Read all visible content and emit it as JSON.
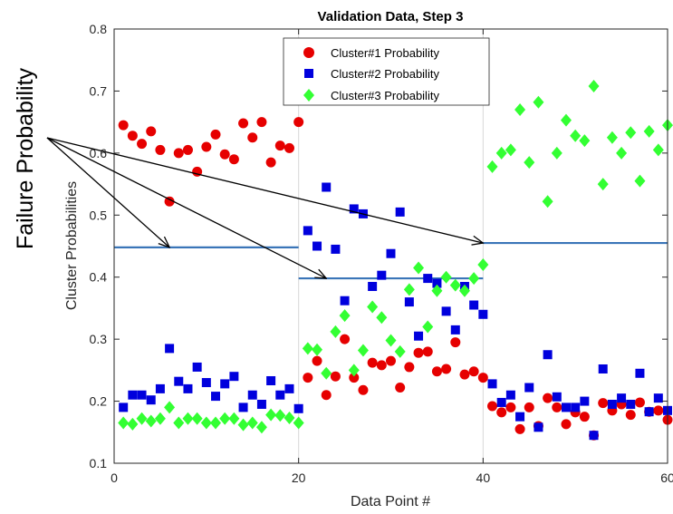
{
  "chart_data": {
    "type": "scatter",
    "title": "Validation Data, Step 3",
    "xlabel": "Data Point #",
    "ylabel": "Cluster Probabilities",
    "xlim": [
      0,
      60
    ],
    "ylim": [
      0.1,
      0.8
    ],
    "xticks": [
      "0",
      "20",
      "40",
      "60"
    ],
    "yticks": [
      "0.1",
      "0.2",
      "0.3",
      "0.4",
      "0.5",
      "0.6",
      "0.7",
      "0.8"
    ],
    "grid": "vertical lines at x=20 and x=40",
    "legend_position": "top-center",
    "annotation": "Failure Probability",
    "colors": {
      "cluster1": "#e60000",
      "cluster2": "#0000dd",
      "cluster3": "#33ff33",
      "failure_line": "#3a75b8"
    },
    "failure_probability_lines": [
      {
        "x": [
          0,
          20
        ],
        "y": 0.448
      },
      {
        "x": [
          20,
          40
        ],
        "y": 0.398
      },
      {
        "x": [
          40,
          60
        ],
        "y": 0.455
      }
    ],
    "series": [
      {
        "name": "Cluster#1 Probability",
        "marker": "circle",
        "x": [
          1,
          2,
          3,
          4,
          5,
          6,
          7,
          8,
          9,
          10,
          11,
          12,
          13,
          14,
          15,
          16,
          17,
          18,
          19,
          20,
          21,
          22,
          23,
          24,
          25,
          26,
          27,
          28,
          29,
          30,
          31,
          32,
          33,
          34,
          35,
          36,
          37,
          38,
          39,
          40,
          41,
          42,
          43,
          44,
          45,
          46,
          47,
          48,
          49,
          50,
          51,
          52,
          53,
          54,
          55,
          56,
          57,
          58,
          59,
          60
        ],
        "y": [
          0.645,
          0.628,
          0.615,
          0.635,
          0.605,
          0.522,
          0.6,
          0.605,
          0.57,
          0.61,
          0.63,
          0.598,
          0.59,
          0.648,
          0.625,
          0.65,
          0.585,
          0.612,
          0.608,
          0.65,
          0.238,
          0.265,
          0.21,
          0.24,
          0.3,
          0.238,
          0.218,
          0.262,
          0.258,
          0.265,
          0.222,
          0.255,
          0.278,
          0.28,
          0.248,
          0.252,
          0.295,
          0.243,
          0.248,
          0.238,
          0.192,
          0.182,
          0.19,
          0.155,
          0.19,
          0.16,
          0.205,
          0.19,
          0.163,
          0.182,
          0.175,
          0.145,
          0.197,
          0.185,
          0.195,
          0.178,
          0.198,
          0.183,
          0.185,
          0.17
        ]
      },
      {
        "name": "Cluster#2 Probability",
        "marker": "square",
        "x": [
          1,
          2,
          3,
          4,
          5,
          6,
          7,
          8,
          9,
          10,
          11,
          12,
          13,
          14,
          15,
          16,
          17,
          18,
          19,
          20,
          21,
          22,
          23,
          24,
          25,
          26,
          27,
          28,
          29,
          30,
          31,
          32,
          33,
          34,
          35,
          36,
          37,
          38,
          39,
          40,
          41,
          42,
          43,
          44,
          45,
          46,
          47,
          48,
          49,
          50,
          51,
          52,
          53,
          54,
          55,
          56,
          57,
          58,
          59,
          60
        ],
        "y": [
          0.19,
          0.21,
          0.21,
          0.202,
          0.22,
          0.285,
          0.232,
          0.22,
          0.255,
          0.23,
          0.208,
          0.228,
          0.24,
          0.19,
          0.21,
          0.195,
          0.233,
          0.21,
          0.22,
          0.188,
          0.475,
          0.45,
          0.545,
          0.445,
          0.362,
          0.51,
          0.502,
          0.385,
          0.403,
          0.438,
          0.505,
          0.36,
          0.305,
          0.398,
          0.39,
          0.345,
          0.315,
          0.385,
          0.355,
          0.34,
          0.228,
          0.198,
          0.21,
          0.175,
          0.222,
          0.158,
          0.275,
          0.207,
          0.19,
          0.19,
          0.2,
          0.145,
          0.252,
          0.195,
          0.205,
          0.195,
          0.245,
          0.183,
          0.205,
          0.185
        ]
      },
      {
        "name": "Cluster#3 Probability",
        "marker": "diamond",
        "x": [
          1,
          2,
          3,
          4,
          5,
          6,
          7,
          8,
          9,
          10,
          11,
          12,
          13,
          14,
          15,
          16,
          17,
          18,
          19,
          20,
          21,
          22,
          23,
          24,
          25,
          26,
          27,
          28,
          29,
          30,
          31,
          32,
          33,
          34,
          35,
          36,
          37,
          38,
          39,
          40,
          41,
          42,
          43,
          44,
          45,
          46,
          47,
          48,
          49,
          50,
          51,
          52,
          53,
          54,
          55,
          56,
          57,
          58,
          59,
          60
        ],
        "y": [
          0.165,
          0.163,
          0.172,
          0.168,
          0.172,
          0.19,
          0.165,
          0.172,
          0.172,
          0.165,
          0.165,
          0.172,
          0.172,
          0.162,
          0.165,
          0.158,
          0.178,
          0.177,
          0.173,
          0.165,
          0.285,
          0.283,
          0.245,
          0.312,
          0.338,
          0.25,
          0.282,
          0.352,
          0.335,
          0.298,
          0.28,
          0.38,
          0.415,
          0.32,
          0.378,
          0.4,
          0.387,
          0.378,
          0.398,
          0.42,
          0.578,
          0.6,
          0.605,
          0.67,
          0.585,
          0.682,
          0.522,
          0.6,
          0.653,
          0.628,
          0.62,
          0.708,
          0.55,
          0.625,
          0.6,
          0.633,
          0.555,
          0.635,
          0.605,
          0.645
        ]
      }
    ]
  }
}
